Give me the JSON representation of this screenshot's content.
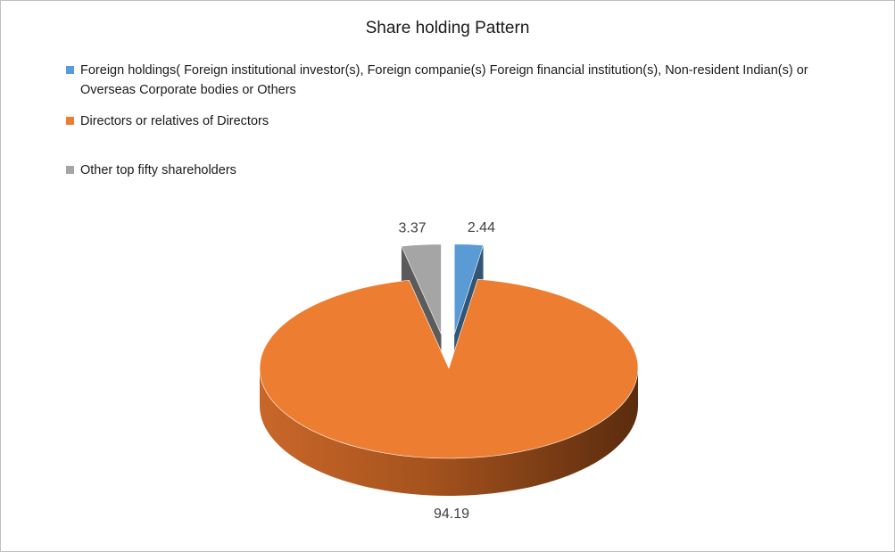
{
  "chart_data": {
    "type": "pie",
    "title": "Share holding Pattern",
    "legend_position": "top",
    "three_d": true,
    "categories": [
      "Foreign holdings( Foreign institutional investor(s), Foreign companie(s) Foreign financial institution(s),  Non-resident Indian(s) or Overseas Corporate bodies or Others",
      "Directors or relatives of Directors",
      "Other top fifty shareholders"
    ],
    "values": [
      2.44,
      94.19,
      3.37
    ],
    "value_labels": [
      "2.44",
      "94.19",
      "3.37"
    ],
    "colors": [
      "#5b9bd5",
      "#ed7d31",
      "#a5a5a5"
    ],
    "exploded": [
      true,
      false,
      true
    ]
  }
}
